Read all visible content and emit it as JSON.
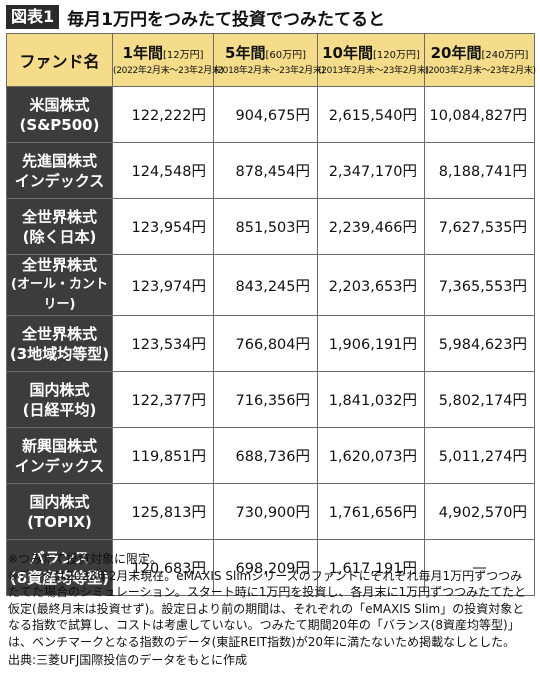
{
  "figure": {
    "label": "図表1",
    "title": "毎月1万円をつみたて投資でつみたてると"
  },
  "table": {
    "fund_header": "ファンド名",
    "columns": [
      {
        "main": "1年間",
        "invest": "[12万円]",
        "period": "(2022年2月末〜23年2月末)"
      },
      {
        "main": "5年間",
        "invest": "[60万円]",
        "period": "(2018年2月末〜23年2月末)"
      },
      {
        "main": "10年間",
        "invest": "[120万円]",
        "period": "(2013年2月末〜23年2月末)"
      },
      {
        "main": "20年間",
        "invest": "[240万円]",
        "period": "(2003年2月末〜23年2月末)"
      }
    ],
    "rows": [
      {
        "name1": "米国株式",
        "name2": "(S&P500)",
        "values": [
          "122,222円",
          "904,675円",
          "2,615,540円",
          "10,084,827円"
        ]
      },
      {
        "name1": "先進国株式",
        "name2": "インデックス",
        "values": [
          "124,548円",
          "878,454円",
          "2,347,170円",
          "8,188,741円"
        ]
      },
      {
        "name1": "全世界株式",
        "name2": "(除く日本)",
        "values": [
          "123,954円",
          "851,503円",
          "2,239,466円",
          "7,627,535円"
        ]
      },
      {
        "name1": "全世界株式",
        "name2": "(オール・カントリー)",
        "values": [
          "123,974円",
          "843,245円",
          "2,203,653円",
          "7,365,553円"
        ]
      },
      {
        "name1": "全世界株式",
        "name2": "(3地域均等型)",
        "values": [
          "123,534円",
          "766,804円",
          "1,906,191円",
          "5,984,623円"
        ]
      },
      {
        "name1": "国内株式",
        "name2": "(日経平均)",
        "values": [
          "122,377円",
          "716,356円",
          "1,841,032円",
          "5,802,174円"
        ]
      },
      {
        "name1": "新興国株式",
        "name2": "インデックス",
        "values": [
          "119,851円",
          "688,736円",
          "1,620,073円",
          "5,011,274円"
        ]
      },
      {
        "name1": "国内株式",
        "name2": "(TOPIX)",
        "values": [
          "125,813円",
          "730,900円",
          "1,761,656円",
          "4,902,570円"
        ]
      },
      {
        "name1": "バランス",
        "name2": "(8資産均等型)",
        "values": [
          "120,683円",
          "698,209円",
          "1,617,191円",
          "—"
        ]
      }
    ]
  },
  "notes": {
    "n1": "※つみたて投資対象に限定。",
    "n2": "※データは2023年2月末現在。eMAXIS Slimシリーズのファンドにそれぞれ毎月1万円ずつつみたてた場合のシミュレーション。スタート時に1万円を投資し、各月末に1万円ずつつみたてたと仮定(最終月末は投資せず)。設定日より前の期間は、それぞれの「eMAXIS Slim」の投資対象となる指数で試算し、コストは考慮していない。つみたて期間20年の「バランス(8資産均等型)」は、ベンチマークとなる指数のデータ(東証REIT指数)が20年に満たないため掲載なしとした。",
    "source": "出典:三菱UFJ国際投信のデータをもとに作成"
  }
}
